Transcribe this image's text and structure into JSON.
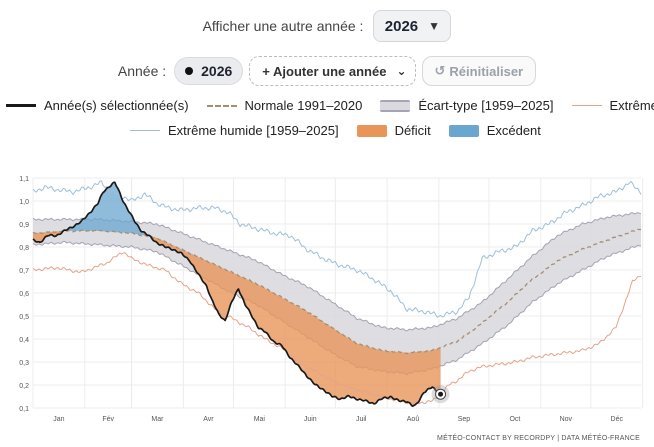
{
  "controls": {
    "other_year_label": "Afficher une autre année :",
    "year_value": "2026",
    "year_label": "Année :",
    "selected_year_chip": "2026",
    "add_year_label": "+ Ajouter une année",
    "reset_label": "Réinitialiser"
  },
  "legend": {
    "selected": "Année(s) sélectionnée(s)",
    "normal": "Normale 1991–2020",
    "stddev": "Écart-type [1959–2025]",
    "extreme_dry": "Extrême sec",
    "extreme_wet": "Extrême humide [1959–2025]",
    "deficit": "Déficit",
    "excess": "Excédent"
  },
  "colors": {
    "selected": "#1a1a1a",
    "normal": "#a58f73",
    "stddev_fill": "#d9d9df",
    "stddev_border": "#a4a4b2",
    "extreme_dry": "#e4a48a",
    "extreme_wet": "#9fbfd9",
    "deficit": "#e9955a",
    "excess": "#6aa6cf",
    "grid": "#ececec"
  },
  "credit": "MÉTÉO-CONTACT BY RECORDPY | DATA MÉTÉO-FRANCE",
  "chart_data": {
    "type": "line",
    "x_unit": "day of year",
    "xlim": [
      1,
      365
    ],
    "ylim": [
      0.1,
      1.1
    ],
    "y_ticks": [
      "0,1",
      "0,2",
      "0,3",
      "0,4",
      "0,5",
      "0,6",
      "0,7",
      "0,8",
      "0,9",
      "1,0",
      "1,1"
    ],
    "month_labels": [
      "Jan",
      "Fév",
      "Mar",
      "Avr",
      "Mai",
      "Juin",
      "Juil",
      "Aoû",
      "Sep",
      "Oct",
      "Nov",
      "Déc"
    ],
    "grid": true,
    "legend_position": "top",
    "series": [
      {
        "name": "Normale 1991–2020",
        "style": "dashed",
        "x": [
          1,
          20,
          40,
          60,
          75,
          90,
          105,
          120,
          135,
          150,
          165,
          180,
          195,
          210,
          225,
          240,
          255,
          270,
          285,
          300,
          315,
          330,
          345,
          365
        ],
        "values": [
          0.86,
          0.87,
          0.87,
          0.86,
          0.84,
          0.79,
          0.74,
          0.69,
          0.64,
          0.58,
          0.52,
          0.45,
          0.38,
          0.35,
          0.34,
          0.35,
          0.39,
          0.47,
          0.56,
          0.66,
          0.74,
          0.79,
          0.83,
          0.88
        ]
      },
      {
        "name": "Écart-type [1959–2025]",
        "style": "band",
        "x": [
          1,
          20,
          40,
          60,
          75,
          90,
          105,
          120,
          135,
          150,
          165,
          180,
          195,
          210,
          225,
          240,
          255,
          270,
          285,
          300,
          315,
          330,
          345,
          365
        ],
        "lower": [
          0.81,
          0.82,
          0.81,
          0.8,
          0.78,
          0.72,
          0.66,
          0.6,
          0.55,
          0.48,
          0.41,
          0.34,
          0.28,
          0.26,
          0.25,
          0.27,
          0.31,
          0.38,
          0.46,
          0.56,
          0.64,
          0.7,
          0.76,
          0.81
        ],
        "upper": [
          0.92,
          0.92,
          0.92,
          0.91,
          0.9,
          0.86,
          0.82,
          0.78,
          0.74,
          0.68,
          0.63,
          0.56,
          0.49,
          0.45,
          0.44,
          0.45,
          0.49,
          0.56,
          0.66,
          0.76,
          0.85,
          0.9,
          0.93,
          0.95
        ]
      },
      {
        "name": "Extrême humide [1959–2025]",
        "style": "line",
        "x": [
          1,
          8,
          15,
          25,
          35,
          42,
          48,
          55,
          60,
          68,
          75,
          82,
          90,
          100,
          110,
          118,
          125,
          135,
          145,
          155,
          165,
          175,
          185,
          195,
          205,
          215,
          225,
          235,
          245,
          255,
          262,
          270,
          280,
          290,
          300,
          310,
          320,
          330,
          340,
          350,
          358,
          365
        ],
        "values": [
          1.04,
          1.06,
          1.05,
          1.04,
          1.06,
          1.08,
          1.04,
          1.02,
          1.0,
          1.03,
          0.99,
          0.97,
          0.96,
          0.97,
          0.97,
          0.95,
          0.9,
          0.88,
          0.86,
          0.85,
          0.79,
          0.75,
          0.72,
          0.7,
          0.66,
          0.61,
          0.53,
          0.52,
          0.5,
          0.52,
          0.58,
          0.75,
          0.78,
          0.8,
          0.87,
          0.9,
          0.95,
          0.98,
          1.02,
          1.04,
          1.08,
          1.04
        ]
      },
      {
        "name": "Extrême sec",
        "style": "line",
        "x": [
          1,
          15,
          30,
          45,
          55,
          60,
          70,
          80,
          90,
          100,
          110,
          120,
          130,
          140,
          150,
          160,
          170,
          180,
          190,
          200,
          210,
          220,
          230,
          240,
          245,
          250,
          255,
          262,
          270,
          280,
          290,
          300,
          310,
          320,
          330,
          340,
          350,
          360,
          365
        ],
        "values": [
          0.7,
          0.71,
          0.69,
          0.73,
          0.78,
          0.75,
          0.72,
          0.7,
          0.64,
          0.6,
          0.53,
          0.49,
          0.45,
          0.4,
          0.36,
          0.3,
          0.26,
          0.22,
          0.19,
          0.17,
          0.15,
          0.13,
          0.12,
          0.13,
          0.16,
          0.2,
          0.22,
          0.26,
          0.28,
          0.29,
          0.3,
          0.32,
          0.33,
          0.34,
          0.35,
          0.38,
          0.45,
          0.65,
          0.68
        ]
      },
      {
        "name": "Année(s) sélectionnée(s)",
        "style": "bold-line",
        "year": 2026,
        "x": [
          1,
          5,
          10,
          15,
          20,
          25,
          30,
          35,
          40,
          43,
          46,
          50,
          52,
          55,
          58,
          62,
          66,
          70,
          75,
          80,
          85,
          90,
          95,
          100,
          105,
          108,
          112,
          116,
          120,
          124,
          128,
          132,
          136,
          140,
          145,
          150,
          155,
          160,
          165,
          170,
          175,
          180,
          185,
          190,
          195,
          200,
          205,
          210,
          215,
          220,
          225,
          228,
          230,
          232,
          235,
          240,
          243,
          245
        ],
        "values": [
          0.83,
          0.82,
          0.85,
          0.85,
          0.87,
          0.89,
          0.91,
          0.95,
          0.99,
          1.04,
          1.06,
          1.08,
          1.05,
          1.0,
          0.96,
          0.91,
          0.87,
          0.85,
          0.82,
          0.8,
          0.79,
          0.77,
          0.74,
          0.68,
          0.63,
          0.57,
          0.51,
          0.48,
          0.56,
          0.62,
          0.55,
          0.5,
          0.45,
          0.43,
          0.39,
          0.37,
          0.32,
          0.28,
          0.24,
          0.2,
          0.18,
          0.15,
          0.14,
          0.15,
          0.14,
          0.13,
          0.12,
          0.14,
          0.15,
          0.13,
          0.13,
          0.11,
          0.11,
          0.13,
          0.17,
          0.19,
          0.17,
          0.16
        ]
      }
    ]
  }
}
